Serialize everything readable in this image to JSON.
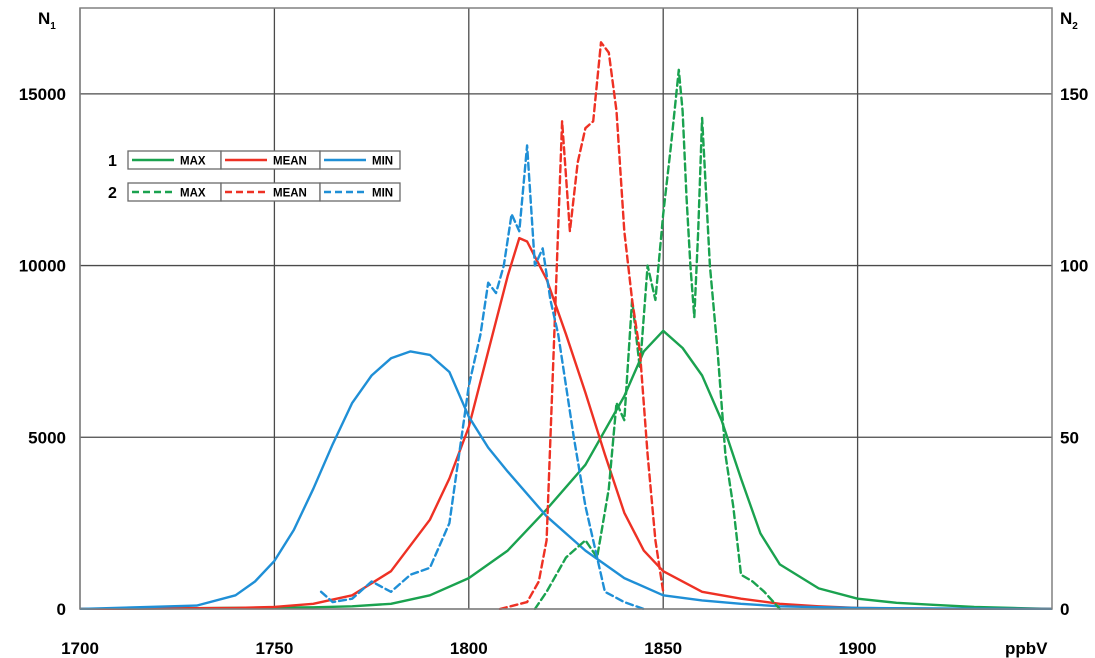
{
  "chart_data": {
    "type": "line",
    "title": "",
    "xlabel": "ppbV",
    "ylabel_left": "N",
    "ylabel_left_sub": "1",
    "ylabel_right": "N",
    "ylabel_right_sub": "2",
    "xlim": [
      1700,
      1950
    ],
    "ylim_left": [
      0,
      17500
    ],
    "ylim_right": [
      0,
      175
    ],
    "x_ticks": [
      1700,
      1750,
      1800,
      1850,
      1900
    ],
    "y_ticks_left": [
      0,
      5000,
      10000,
      15000
    ],
    "y_ticks_right": [
      0,
      50,
      100,
      150
    ],
    "grid": true,
    "legend_position": "upper-left",
    "legend_rows": [
      {
        "group_label": "1",
        "style": "solid",
        "axis": "left",
        "entries": [
          "MAX",
          "MEAN",
          "MIN"
        ]
      },
      {
        "group_label": "2",
        "style": "dashed",
        "axis": "right",
        "entries": [
          "MAX",
          "MEAN",
          "MIN"
        ]
      }
    ],
    "series": [
      {
        "group": "1",
        "name": "MAX",
        "color": "#1aa24f",
        "style": "solid",
        "axis": "left",
        "x": [
          1700,
          1760,
          1770,
          1780,
          1790,
          1800,
          1810,
          1820,
          1830,
          1840,
          1845,
          1850,
          1855,
          1860,
          1865,
          1870,
          1875,
          1880,
          1890,
          1900,
          1910,
          1920,
          1930,
          1940,
          1950
        ],
        "y": [
          0,
          50,
          80,
          150,
          400,
          900,
          1700,
          2900,
          4200,
          6200,
          7500,
          8100,
          7600,
          6800,
          5500,
          3800,
          2200,
          1300,
          600,
          300,
          180,
          120,
          60,
          30,
          0
        ]
      },
      {
        "group": "1",
        "name": "MEAN",
        "color": "#ee3124",
        "style": "solid",
        "axis": "left",
        "x": [
          1700,
          1740,
          1750,
          1760,
          1770,
          1780,
          1790,
          1795,
          1800,
          1805,
          1810,
          1813,
          1815,
          1820,
          1825,
          1830,
          1835,
          1840,
          1845,
          1850,
          1860,
          1870,
          1880,
          1890,
          1900,
          1920,
          1950
        ],
        "y": [
          0,
          30,
          60,
          150,
          400,
          1100,
          2600,
          3800,
          5300,
          7500,
          9700,
          10800,
          10700,
          9600,
          8000,
          6300,
          4500,
          2800,
          1700,
          1100,
          500,
          300,
          150,
          80,
          30,
          10,
          0
        ]
      },
      {
        "group": "1",
        "name": "MIN",
        "color": "#1f8fd6",
        "style": "solid",
        "axis": "left",
        "x": [
          1700,
          1730,
          1740,
          1745,
          1750,
          1755,
          1760,
          1765,
          1770,
          1775,
          1780,
          1785,
          1790,
          1795,
          1800,
          1805,
          1810,
          1820,
          1830,
          1840,
          1850,
          1860,
          1870,
          1880,
          1900,
          1950
        ],
        "y": [
          0,
          100,
          400,
          800,
          1400,
          2300,
          3500,
          4800,
          6000,
          6800,
          7300,
          7500,
          7400,
          6900,
          5600,
          4700,
          4000,
          2700,
          1700,
          900,
          400,
          250,
          150,
          80,
          30,
          0
        ]
      },
      {
        "group": "2",
        "name": "MAX",
        "color": "#1aa24f",
        "style": "dashed",
        "axis": "right",
        "x": [
          1817,
          1820,
          1825,
          1830,
          1833,
          1836,
          1838,
          1840,
          1842,
          1844,
          1846,
          1848,
          1850,
          1852,
          1854,
          1855,
          1856,
          1857,
          1858,
          1859,
          1860,
          1862,
          1864,
          1866,
          1868,
          1870,
          1873,
          1876,
          1880
        ],
        "y": [
          0,
          5,
          15,
          20,
          15,
          35,
          60,
          55,
          90,
          70,
          100,
          90,
          115,
          135,
          157,
          145,
          120,
          100,
          85,
          110,
          143,
          100,
          75,
          45,
          30,
          10,
          8,
          5,
          0
        ]
      },
      {
        "group": "2",
        "name": "MEAN",
        "color": "#ee3124",
        "style": "dashed",
        "axis": "right",
        "x": [
          1808,
          1815,
          1818,
          1820,
          1822,
          1824,
          1826,
          1828,
          1830,
          1832,
          1834,
          1836,
          1838,
          1840,
          1842,
          1844,
          1846,
          1848,
          1850
        ],
        "y": [
          0,
          2,
          8,
          20,
          80,
          142,
          110,
          130,
          140,
          142,
          165,
          162,
          145,
          110,
          90,
          75,
          45,
          20,
          5
        ]
      },
      {
        "group": "2",
        "name": "MIN",
        "color": "#1f8fd6",
        "style": "dashed",
        "axis": "right",
        "x": [
          1762,
          1765,
          1770,
          1775,
          1780,
          1785,
          1790,
          1795,
          1800,
          1803,
          1805,
          1807,
          1809,
          1811,
          1813,
          1815,
          1817,
          1819,
          1821,
          1823,
          1825,
          1827,
          1830,
          1835,
          1840,
          1845
        ],
        "y": [
          5,
          2,
          3,
          8,
          5,
          10,
          12,
          25,
          65,
          80,
          95,
          92,
          100,
          115,
          110,
          135,
          100,
          105,
          90,
          80,
          65,
          50,
          30,
          5,
          2,
          0
        ]
      }
    ]
  }
}
